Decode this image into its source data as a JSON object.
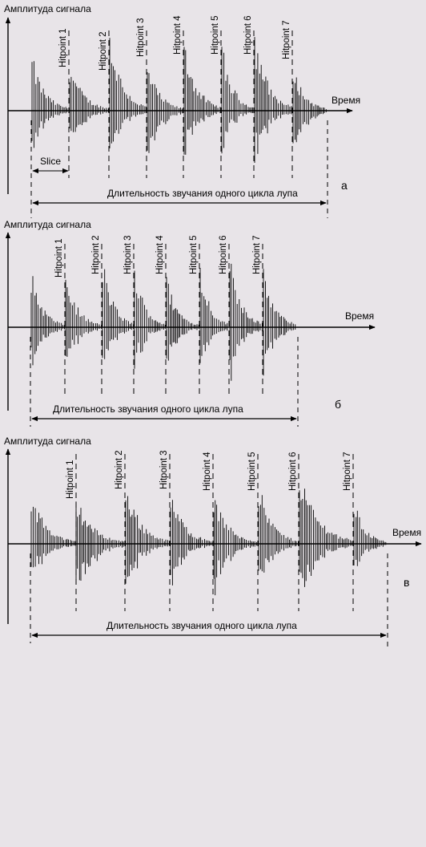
{
  "panels": [
    {
      "letter": "а",
      "amplitude_label": "Амплитуда сигнала",
      "time_label": "Время",
      "duration_label": "Длительность звучания одного цикла лупа",
      "slice_label": "Slice",
      "hitpoints": [
        "Hitpoint 1",
        "Hitpoint 2",
        "Hitpoint 3",
        "Hitpoint 4",
        "Hitpoint 5",
        "Hitpoint 6",
        "Hitpoint 7"
      ]
    },
    {
      "letter": "б",
      "amplitude_label": "Амплитуда сигнала",
      "time_label": "Время",
      "duration_label": "Длительность звучания одного цикла лупа",
      "slice_label": "",
      "hitpoints": [
        "Hitpoint 1",
        "Hitpoint 2",
        "Hitpoint 3",
        "Hitpoint 4",
        "Hitpoint 5",
        "Hitpoint 6",
        "Hitpoint 7"
      ]
    },
    {
      "letter": "в",
      "amplitude_label": "Амплитуда сигнала",
      "time_label": "Время",
      "duration_label": "Длительность звучания одного цикла лупа",
      "slice_label": "",
      "hitpoints": [
        "Hitpoint 1",
        "Hitpoint 2",
        "Hitpoint 3",
        "Hitpoint 4",
        "Hitpoint 5",
        "Hitpoint 6",
        "Hitpoint 7"
      ]
    }
  ],
  "colors": {
    "ink": "#000000",
    "background": "#e8e4e8"
  }
}
